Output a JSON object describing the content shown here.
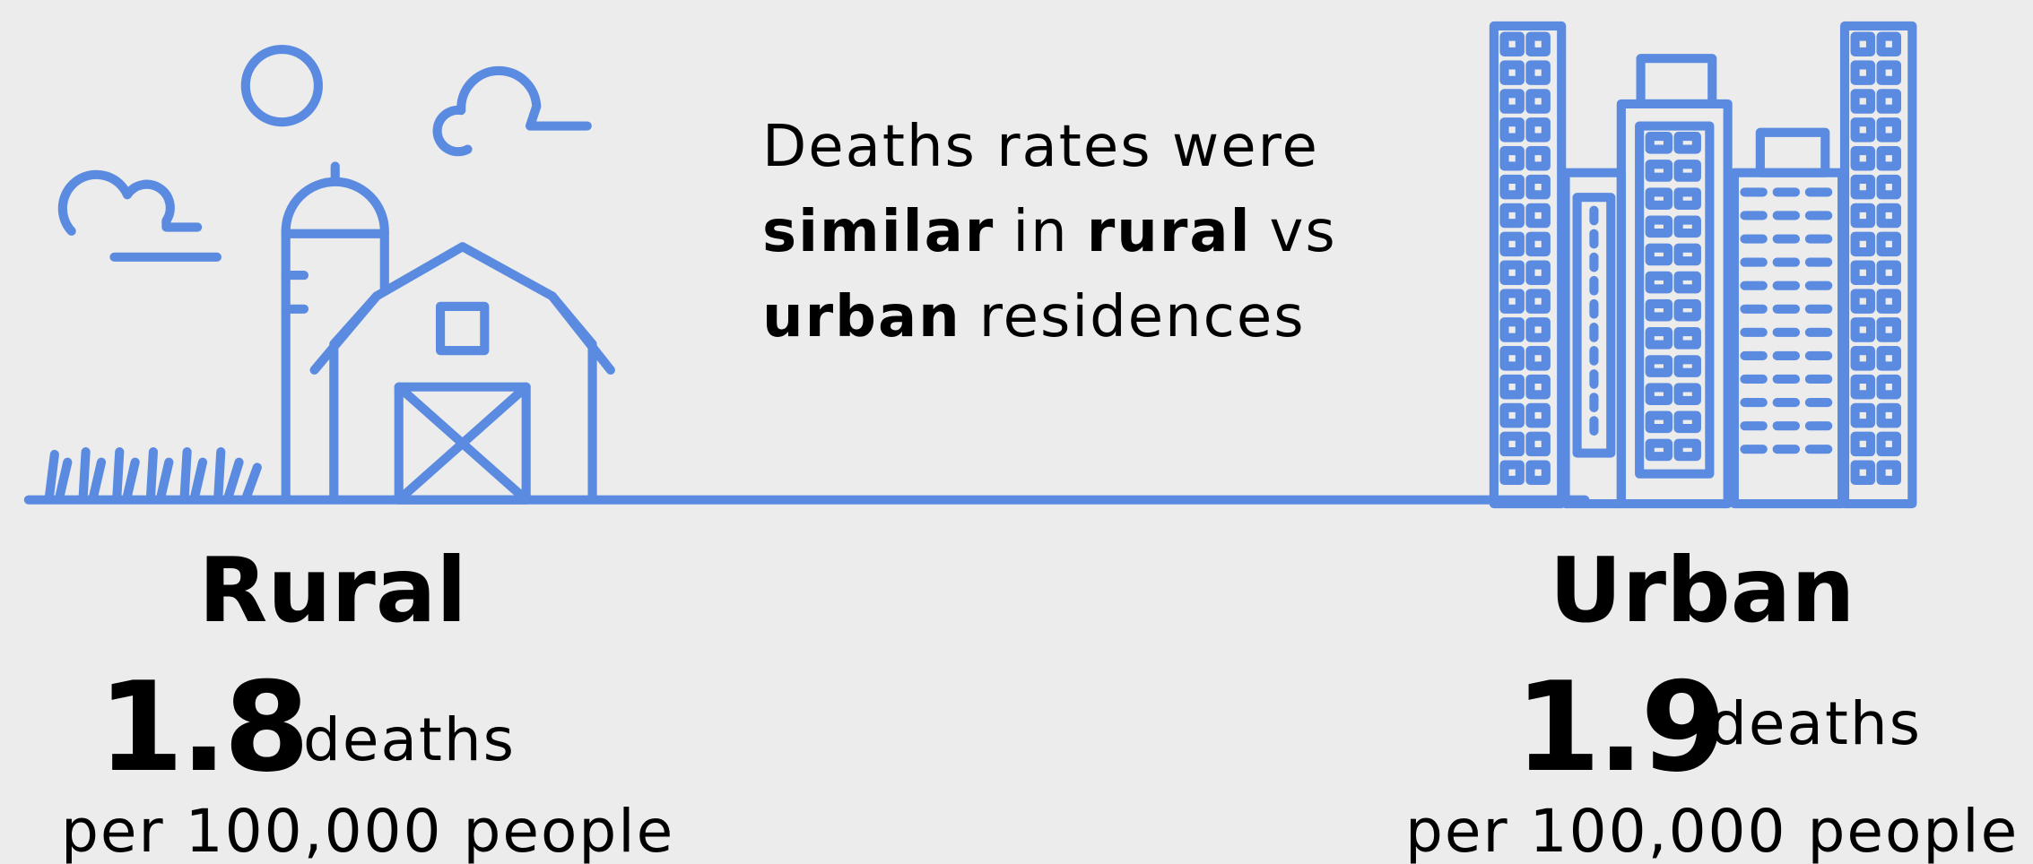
{
  "headline": {
    "lines": [
      [
        {
          "text": "Deaths rates were",
          "bold": false
        }
      ],
      [
        {
          "text": "similar",
          "bold": true
        },
        {
          "text": "in",
          "bold": false
        },
        {
          "text": "rural",
          "bold": true
        },
        {
          "text": "vs",
          "bold": false
        }
      ],
      [
        {
          "text": "urban",
          "bold": true
        },
        {
          "text": "residences",
          "bold": false
        }
      ]
    ]
  },
  "rural": {
    "label": "Rural",
    "value": 1.8,
    "unit": "deaths",
    "per": "per 100,000 people"
  },
  "urban": {
    "label": "Urban",
    "value": 1.9,
    "unit": "deaths",
    "per": "per 100,000 people"
  }
}
